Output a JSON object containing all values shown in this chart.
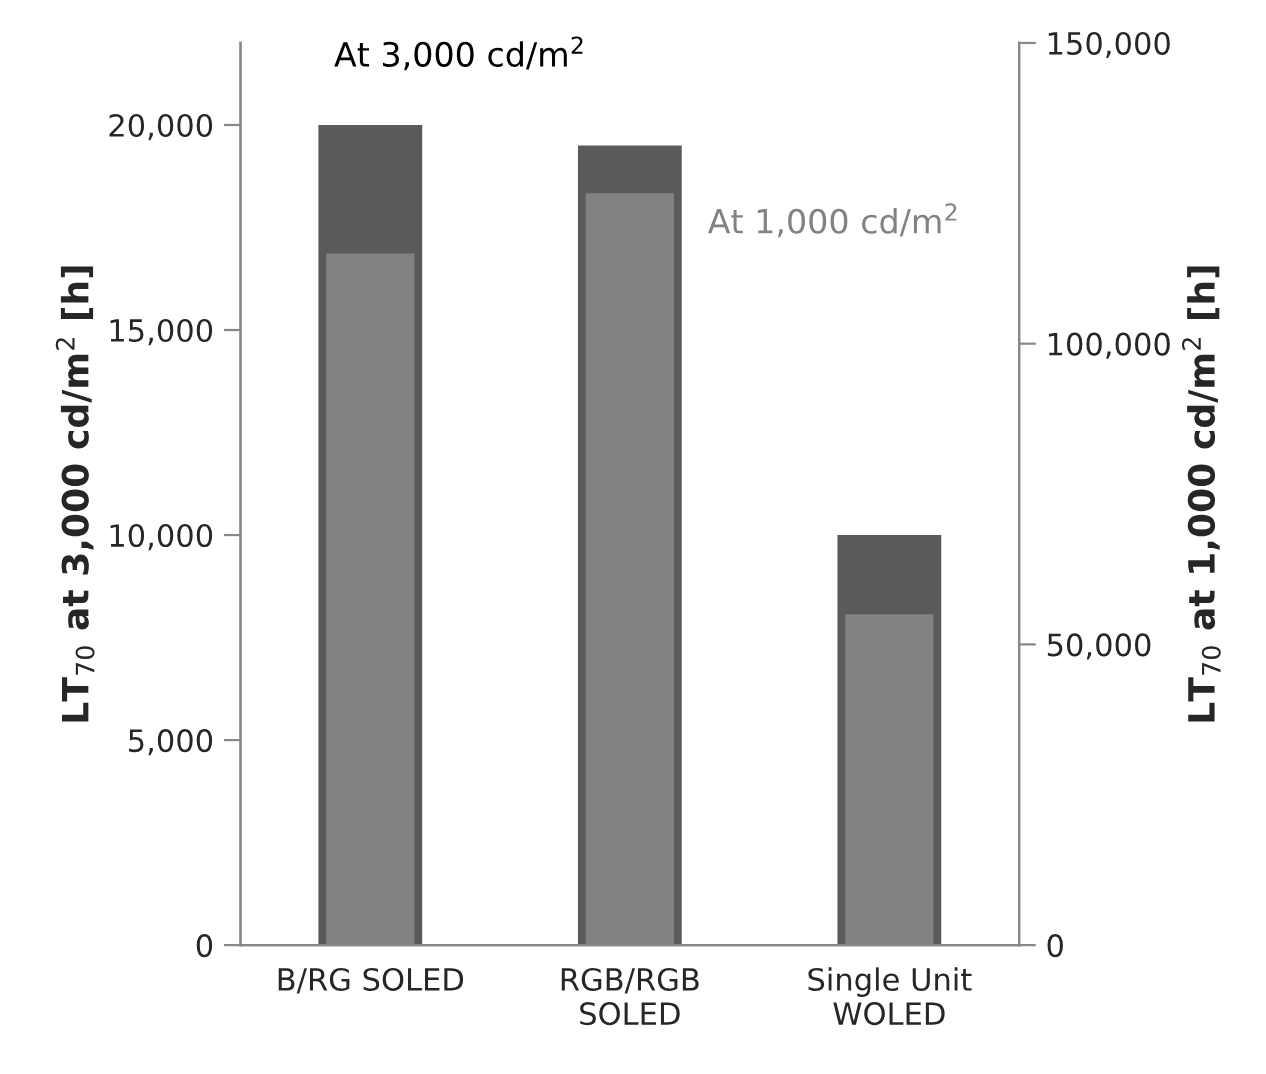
{
  "chart_data": {
    "type": "bar",
    "categories": [
      "B/RG SOLED",
      "RGB/RGB\nSOLED",
      "Single Unit\nWOLED"
    ],
    "series": [
      {
        "name": "At 3,000 cd/m$^{2}$",
        "color": "#5a5a5a",
        "values": [
          20000,
          19500,
          10000
        ]
      },
      {
        "name": "At 1,000 cd/m$^{2}$",
        "color": "#828282",
        "values": [
          115000,
          125000,
          55000
        ],
        "axis": "y2"
      }
    ],
    "ylabel": "LT$_{70}$ at 3,000 cd/m$^{2}$ [h]",
    "y2label": "LT$_{70}$ at 1,000 cd/m$^{2}$ [h]",
    "ylim": [
      0,
      22000
    ],
    "yticks": [
      {
        "value": 0,
        "label": "0"
      },
      {
        "value": 5000,
        "label": "5,000"
      },
      {
        "value": 10000,
        "label": "10,000"
      },
      {
        "value": 15000,
        "label": "15,000"
      },
      {
        "value": 20000,
        "label": "20,000"
      }
    ],
    "y2lim": [
      0,
      150000
    ],
    "y2ticks": [
      {
        "value": 0,
        "label": "0"
      },
      {
        "value": 50000,
        "label": "50,000"
      },
      {
        "value": 100000,
        "label": "100,000"
      },
      {
        "value": 150000,
        "label": "150,000"
      }
    ],
    "grid": false,
    "legend": false
  }
}
